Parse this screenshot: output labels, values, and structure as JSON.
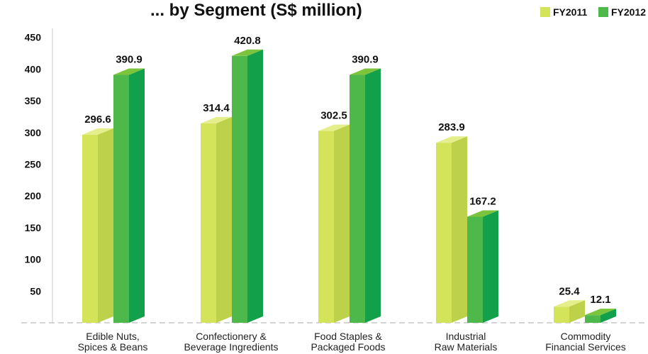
{
  "chart_data": {
    "type": "bar",
    "title": "... by Segment (S$ million)",
    "categories": [
      [
        "Edible Nuts,",
        "Spices & Beans"
      ],
      [
        "Confectionery &",
        "Beverage Ingredients"
      ],
      [
        "Food Staples &",
        "Packaged Foods"
      ],
      [
        "Industrial",
        "Raw Materials"
      ],
      [
        "Commodity",
        "Financial Services"
      ]
    ],
    "series": [
      {
        "name": "FY2011",
        "values": [
          296.6,
          314.4,
          302.5,
          283.9,
          25.4
        ],
        "labels": [
          "296.6",
          "314.4",
          "302.5",
          "283.9",
          "25.4"
        ]
      },
      {
        "name": "FY2012",
        "values": [
          390.9,
          420.8,
          390.9,
          167.2,
          12.1
        ],
        "labels": [
          "390.9",
          "420.8",
          "390.9",
          "167.2",
          "12.1"
        ]
      }
    ],
    "yticks": [
      "50",
      "100",
      "150",
      "200",
      "250",
      "300",
      "350",
      "400",
      "450"
    ],
    "ylim": [
      0,
      450
    ],
    "grid": false,
    "legend_position": "top-right",
    "bar_style": "3d"
  },
  "colors": {
    "FY2011": {
      "front": "#d4e45a",
      "side": "#bdd14a",
      "top": "#e4ee8a"
    },
    "FY2012": {
      "front": "#4eb84a",
      "side": "#12a04a",
      "top": "#7cc43c"
    },
    "baseline": "#bbbbbb",
    "axis": "#cccccc"
  }
}
